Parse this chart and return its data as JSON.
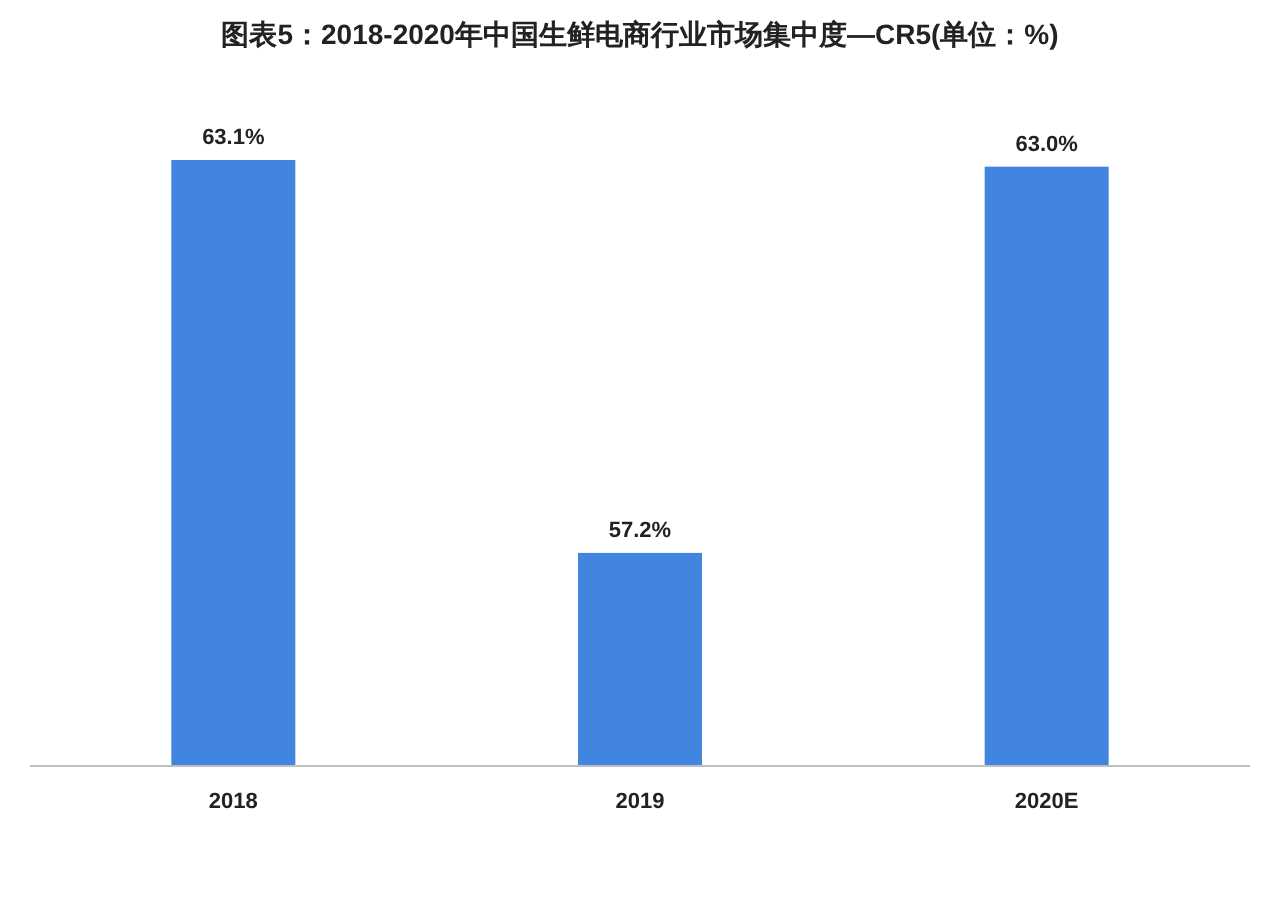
{
  "chart_data": {
    "type": "bar",
    "title": "图表5：2018-2020年中国生鲜电商行业市场集中度—CR5(单位：%)",
    "categories": [
      "2018",
      "2019",
      "2020E"
    ],
    "values": [
      63.1,
      57.2,
      63.0
    ],
    "value_labels": [
      "63.1%",
      "57.2%",
      "63.0%"
    ],
    "color": "#4285e0",
    "ylim": [
      54,
      63.1
    ]
  }
}
